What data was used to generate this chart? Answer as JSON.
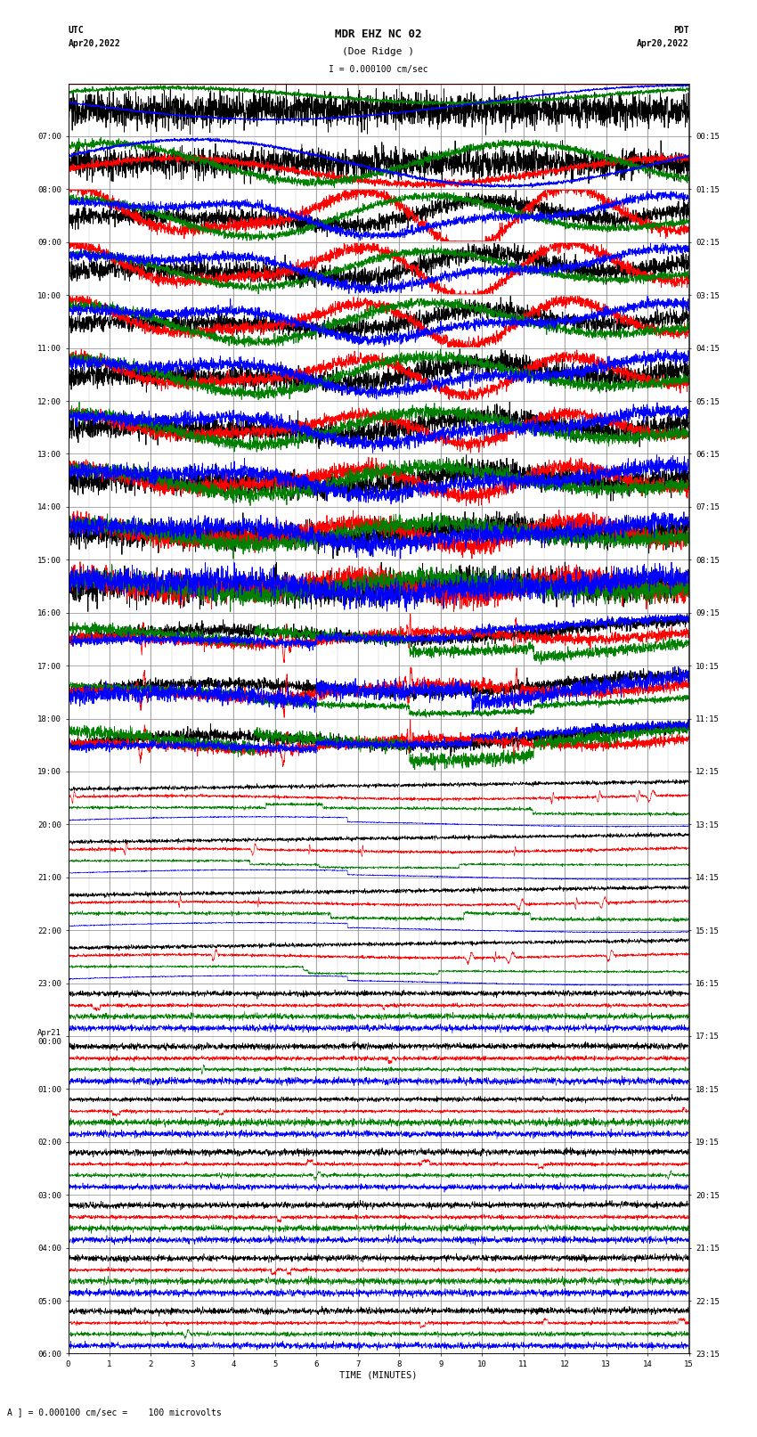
{
  "title_line1": "MDR EHZ NC 02",
  "title_line2": "(Doe Ridge )",
  "scale_label": "I = 0.000100 cm/sec",
  "footer_label": "A ] = 0.000100 cm/sec =    100 microvolts",
  "utc_label1": "UTC",
  "utc_label2": "Apr20,2022",
  "pdt_label1": "PDT",
  "pdt_label2": "Apr20,2022",
  "left_times": [
    "07:00",
    "08:00",
    "09:00",
    "10:00",
    "11:00",
    "12:00",
    "13:00",
    "14:00",
    "15:00",
    "16:00",
    "17:00",
    "18:00",
    "19:00",
    "20:00",
    "21:00",
    "22:00",
    "23:00",
    "Apr21\n00:00",
    "01:00",
    "02:00",
    "03:00",
    "04:00",
    "05:00",
    "06:00"
  ],
  "right_times": [
    "00:15",
    "01:15",
    "02:15",
    "03:15",
    "04:15",
    "05:15",
    "06:15",
    "07:15",
    "08:15",
    "09:15",
    "10:15",
    "11:15",
    "12:15",
    "13:15",
    "14:15",
    "15:15",
    "16:15",
    "17:15",
    "18:15",
    "19:15",
    "20:15",
    "21:15",
    "22:15",
    "23:15"
  ],
  "xlabel": "TIME (MINUTES)",
  "xmin": 0,
  "xmax": 15,
  "num_rows": 24,
  "colors": [
    "black",
    "red",
    "green",
    "blue"
  ],
  "bg_color": "#ffffff",
  "grid_color": "#888888",
  "figwidth": 8.5,
  "figheight": 16.13,
  "dpi": 100,
  "title_fontsize": 9,
  "label_fontsize": 7,
  "tick_fontsize": 6.5
}
